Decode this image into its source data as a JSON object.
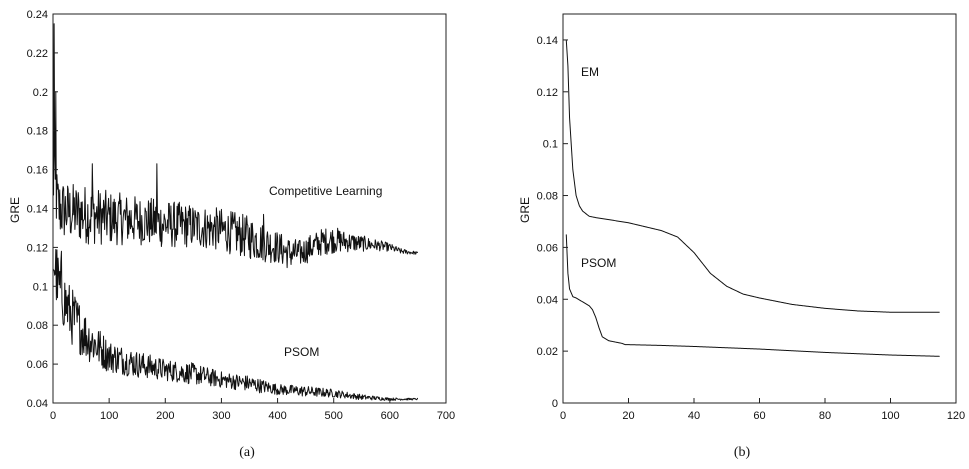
{
  "chart_data": [
    {
      "type": "line",
      "caption": "(a)",
      "ylabel": "GRE",
      "xlabel": "",
      "xlim": [
        0,
        700
      ],
      "ylim": [
        0.04,
        0.24
      ],
      "xticks": [
        "0",
        "100",
        "200",
        "300",
        "400",
        "500",
        "600",
        "700"
      ],
      "yticks": [
        "0.04",
        "0.06",
        "0.08",
        "0.1",
        "0.12",
        "0.14",
        "0.16",
        "0.18",
        "0.2",
        "0.22",
        "0.24"
      ],
      "series": [
        {
          "name": "Competitive Learning",
          "x": [
            0,
            10,
            30,
            60,
            100,
            150,
            200,
            250,
            300,
            350,
            380,
            400,
            420,
            440,
            460,
            480,
            500,
            520,
            550,
            580,
            600,
            620,
            650
          ],
          "y": [
            0.155,
            0.14,
            0.138,
            0.137,
            0.135,
            0.134,
            0.132,
            0.131,
            0.129,
            0.125,
            0.122,
            0.12,
            0.117,
            0.117,
            0.12,
            0.123,
            0.124,
            0.123,
            0.122,
            0.121,
            0.12,
            0.118,
            0.117
          ],
          "noise": [
            0.012,
            0.012,
            0.011,
            0.011,
            0.01,
            0.009,
            0.009,
            0.008,
            0.008,
            0.008,
            0.007,
            0.006,
            0.006,
            0.005,
            0.005,
            0.005,
            0.005,
            0.004,
            0.003,
            0.002,
            0.0015,
            0.001,
            0.0005
          ]
        },
        {
          "name": "PSOM",
          "x": [
            0,
            10,
            30,
            60,
            100,
            150,
            200,
            250,
            300,
            350,
            400,
            450,
            500,
            550,
            600,
            650
          ],
          "y": [
            0.115,
            0.1,
            0.086,
            0.074,
            0.064,
            0.06,
            0.057,
            0.055,
            0.052,
            0.05,
            0.047,
            0.046,
            0.045,
            0.043,
            0.042,
            0.042
          ],
          "noise": [
            0.012,
            0.012,
            0.011,
            0.009,
            0.006,
            0.005,
            0.004,
            0.004,
            0.003,
            0.003,
            0.002,
            0.002,
            0.0015,
            0.001,
            0.0005,
            0.0003
          ]
        }
      ],
      "spikes": [
        {
          "series": "Competitive Learning",
          "x": 2,
          "y": 0.235
        },
        {
          "series": "Competitive Learning",
          "x": 5,
          "y": 0.2
        },
        {
          "series": "Competitive Learning",
          "x": 70,
          "y": 0.163
        },
        {
          "series": "Competitive Learning",
          "x": 185,
          "y": 0.163
        },
        {
          "series": "Competitive Learning",
          "x": 375,
          "y": 0.137
        },
        {
          "series": "PSOM",
          "x": 15,
          "y": 0.118
        }
      ]
    },
    {
      "type": "line",
      "caption": "(b)",
      "ylabel": "GRE",
      "xlabel": "",
      "xlim": [
        0,
        120
      ],
      "ylim": [
        0,
        0.15
      ],
      "xticks": [
        "0",
        "20",
        "40",
        "60",
        "80",
        "100",
        "120"
      ],
      "yticks": [
        "0",
        "0.02",
        "0.04",
        "0.06",
        "0.08",
        "0.1",
        "0.12",
        "0.14"
      ],
      "series": [
        {
          "name": "EM",
          "x": [
            1,
            1.5,
            2,
            3,
            4,
            5,
            6,
            8,
            10,
            15,
            20,
            25,
            30,
            35,
            40,
            45,
            50,
            55,
            60,
            70,
            80,
            90,
            100,
            115
          ],
          "y": [
            0.14,
            0.13,
            0.11,
            0.09,
            0.08,
            0.076,
            0.074,
            0.072,
            0.0715,
            0.0705,
            0.0695,
            0.068,
            0.0665,
            0.064,
            0.058,
            0.05,
            0.045,
            0.042,
            0.0405,
            0.038,
            0.0365,
            0.0355,
            0.035,
            0.035
          ]
        },
        {
          "name": "PSOM",
          "x": [
            1,
            1.5,
            2,
            3,
            4,
            6,
            8,
            9,
            10,
            11,
            12,
            14,
            16,
            18,
            19,
            20,
            30,
            40,
            60,
            80,
            100,
            115
          ],
          "y": [
            0.065,
            0.05,
            0.044,
            0.041,
            0.0405,
            0.039,
            0.0375,
            0.036,
            0.033,
            0.029,
            0.0255,
            0.024,
            0.0235,
            0.023,
            0.0225,
            0.0225,
            0.0222,
            0.0218,
            0.0208,
            0.0195,
            0.0185,
            0.018
          ]
        }
      ]
    }
  ]
}
